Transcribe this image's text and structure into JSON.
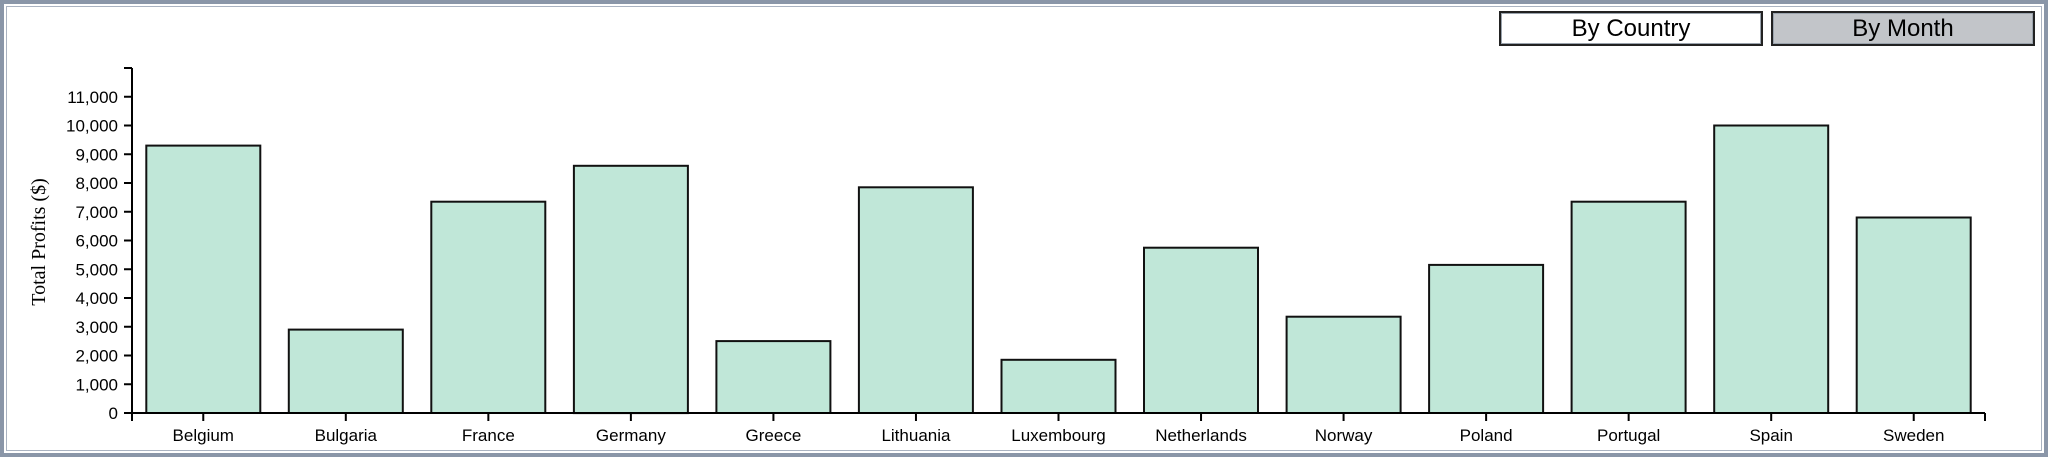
{
  "controls": {
    "by_country_label": "By Country",
    "by_month_label": "By Month",
    "active": "By Country"
  },
  "colors": {
    "bar_fill": "#c0e7d8",
    "bar_stroke": "#111111",
    "axis": "#000000"
  },
  "chart_data": {
    "type": "bar",
    "title": "",
    "xlabel": "",
    "ylabel": "Total Profits ($)",
    "categories": [
      "Belgium",
      "Bulgaria",
      "France",
      "Germany",
      "Greece",
      "Lithuania",
      "Luxembourg",
      "Netherlands",
      "Norway",
      "Poland",
      "Portugal",
      "Spain",
      "Sweden"
    ],
    "values": [
      9300,
      2900,
      7350,
      8600,
      2500,
      7850,
      1850,
      5750,
      3350,
      5150,
      7350,
      10000,
      6800
    ],
    "ylim": [
      0,
      12000
    ],
    "yticks": [
      "0",
      "1,000",
      "2,000",
      "3,000",
      "4,000",
      "5,000",
      "6,000",
      "7,000",
      "8,000",
      "9,000",
      "10,000",
      "11,000"
    ],
    "grid": false,
    "legend": "none"
  }
}
